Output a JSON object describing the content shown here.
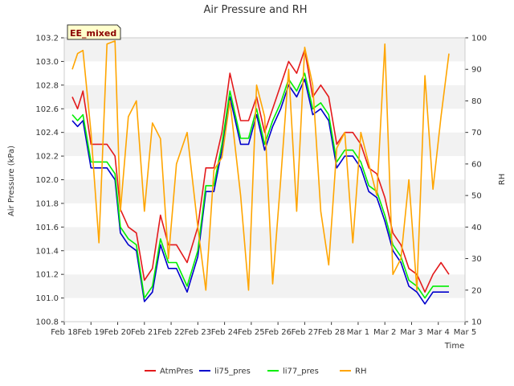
{
  "chart_data": {
    "type": "line",
    "title": "Air Pressure and RH",
    "xlabel": "Time",
    "ylabel": "Air Pressure (kPa)",
    "y2label": "RH",
    "badge": "EE_mixed",
    "x_ticks": [
      "Feb 18",
      "Feb 19",
      "Feb 20",
      "Feb 21",
      "Feb 22",
      "Feb 23",
      "Feb 24",
      "Feb 25",
      "Feb 26",
      "Feb 27",
      "Feb 28",
      "Mar 1",
      "Mar 2",
      "Mar 3",
      "Mar 4",
      "Mar 5"
    ],
    "xlim": [
      0,
      15
    ],
    "ylim": [
      100.8,
      103.2
    ],
    "y_ticks": [
      "100.8",
      "101.0",
      "101.2",
      "101.4",
      "101.6",
      "101.8",
      "102.0",
      "102.2",
      "102.4",
      "102.6",
      "102.8",
      "103.0",
      "103.2"
    ],
    "y2lim": [
      10,
      100
    ],
    "y2_ticks": [
      "10",
      "20",
      "30",
      "40",
      "50",
      "60",
      "70",
      "80",
      "90",
      "100"
    ],
    "grid": "horizontal bands",
    "legend_position": "bottom",
    "x": [
      0.3,
      0.5,
      0.7,
      1.0,
      1.3,
      1.6,
      1.9,
      2.1,
      2.4,
      2.7,
      3.0,
      3.3,
      3.6,
      3.9,
      4.2,
      4.6,
      5.0,
      5.3,
      5.6,
      5.9,
      6.2,
      6.6,
      6.9,
      7.2,
      7.5,
      7.8,
      8.1,
      8.4,
      8.7,
      9.0,
      9.3,
      9.6,
      9.9,
      10.2,
      10.5,
      10.8,
      11.1,
      11.4,
      11.7,
      12.0,
      12.3,
      12.6,
      12.9,
      13.2,
      13.5,
      13.8,
      14.1,
      14.4
    ],
    "series": [
      {
        "name": "AtmPres",
        "color": "#e31a1c",
        "axis": "left",
        "values": [
          102.7,
          102.6,
          102.75,
          102.3,
          102.3,
          102.3,
          102.2,
          101.75,
          101.6,
          101.55,
          101.15,
          101.25,
          101.7,
          101.45,
          101.45,
          101.3,
          101.6,
          102.1,
          102.1,
          102.4,
          102.9,
          102.5,
          102.5,
          102.7,
          102.4,
          102.6,
          102.8,
          103.0,
          102.9,
          103.1,
          102.7,
          102.8,
          102.7,
          102.3,
          102.4,
          102.4,
          102.3,
          102.1,
          102.05,
          101.85,
          101.55,
          101.45,
          101.25,
          101.2,
          101.05,
          101.2,
          101.3,
          101.2
        ]
      },
      {
        "name": "li75_pres",
        "color": "#0000cc",
        "axis": "left",
        "values": [
          102.5,
          102.45,
          102.5,
          102.1,
          102.1,
          102.1,
          102.0,
          101.55,
          101.45,
          101.4,
          100.97,
          101.05,
          101.45,
          101.25,
          101.25,
          101.05,
          101.35,
          101.9,
          101.9,
          102.25,
          102.7,
          102.3,
          102.3,
          102.55,
          102.25,
          102.45,
          102.6,
          102.8,
          102.7,
          102.85,
          102.55,
          102.6,
          102.5,
          102.1,
          102.2,
          102.2,
          102.1,
          101.9,
          101.85,
          101.65,
          101.4,
          101.3,
          101.1,
          101.05,
          100.95,
          101.05,
          101.05,
          101.05
        ]
      },
      {
        "name": "li77_pres",
        "color": "#00ee00",
        "axis": "left",
        "values": [
          102.55,
          102.5,
          102.55,
          102.15,
          102.15,
          102.15,
          102.05,
          101.6,
          101.5,
          101.45,
          101.0,
          101.1,
          101.5,
          101.3,
          101.3,
          101.1,
          101.4,
          101.95,
          101.95,
          102.3,
          102.75,
          102.35,
          102.35,
          102.6,
          102.3,
          102.5,
          102.65,
          102.85,
          102.75,
          102.9,
          102.6,
          102.65,
          102.55,
          102.15,
          102.25,
          102.25,
          102.15,
          101.95,
          101.9,
          101.7,
          101.45,
          101.35,
          101.15,
          101.1,
          101.0,
          101.1,
          101.1,
          101.1
        ]
      },
      {
        "name": "RH",
        "color": "#ffa500",
        "axis": "right",
        "values": [
          90,
          95,
          96,
          70,
          35,
          98,
          99,
          45,
          75,
          80,
          45,
          73,
          68,
          30,
          60,
          70,
          40,
          20,
          58,
          62,
          80,
          50,
          20,
          85,
          75,
          22,
          55,
          90,
          45,
          97,
          85,
          45,
          28,
          65,
          70,
          35,
          70,
          60,
          50,
          98,
          25,
          30,
          55,
          20,
          88,
          52,
          75,
          95
        ]
      }
    ]
  }
}
